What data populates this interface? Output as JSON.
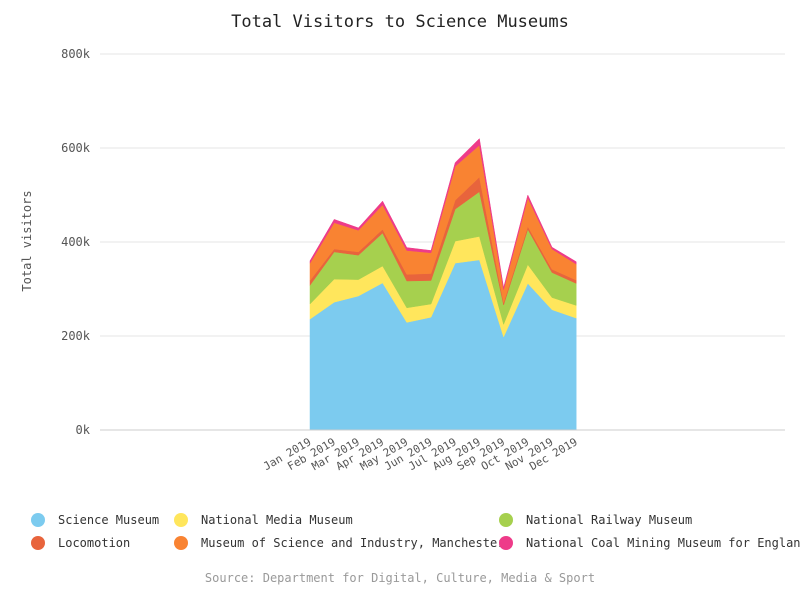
{
  "chart_data": {
    "type": "area",
    "stacked": true,
    "title": "Total Visitors to Science Museums",
    "ylabel": "Total visitors",
    "xlabel": "",
    "source": "Source: Department for Digital, Culture, Media & Sport",
    "ylim": [
      0,
      800000
    ],
    "yticks": [
      0,
      200000,
      400000,
      600000,
      800000
    ],
    "ytick_labels": [
      "0k",
      "200k",
      "400k",
      "600k",
      "800k"
    ],
    "grid": true,
    "legend_position": "bottom",
    "categories": [
      "Jan 2019",
      "Feb 2019",
      "Mar 2019",
      "Apr 2019",
      "May 2019",
      "Jun 2019",
      "Jul 2019",
      "Aug 2019",
      "Sep 2019",
      "Oct 2019",
      "Nov 2019",
      "Dec 2019"
    ],
    "series": [
      {
        "name": "Science Museum",
        "color": "#7ccbef",
        "values": [
          236000,
          272000,
          285000,
          313000,
          229000,
          240000,
          355000,
          362000,
          198000,
          312000,
          256000,
          238000
        ]
      },
      {
        "name": "National Media Museum",
        "color": "#ffe65c",
        "values": [
          32000,
          49000,
          35000,
          36000,
          31000,
          28000,
          47000,
          50000,
          27000,
          40000,
          26000,
          27000
        ]
      },
      {
        "name": "National Railway Museum",
        "color": "#a6d04e",
        "values": [
          40000,
          58000,
          52000,
          70000,
          57000,
          50000,
          68000,
          95000,
          41000,
          75000,
          53000,
          47000
        ]
      },
      {
        "name": "Locomotion",
        "color": "#e8643c",
        "values": [
          10000,
          6000,
          7000,
          8000,
          14000,
          15000,
          19000,
          31000,
          5000,
          6000,
          7000,
          7000
        ]
      },
      {
        "name": "Museum of Science and Industry, Manchester",
        "color": "#f98332",
        "values": [
          37000,
          56000,
          46000,
          52000,
          51000,
          44000,
          72000,
          68000,
          28000,
          61000,
          43000,
          34000
        ]
      },
      {
        "name": "National Coal Mining Museum for England",
        "color": "#ee3b89",
        "values": [
          5000,
          7000,
          5000,
          8000,
          6000,
          5000,
          8000,
          14000,
          4000,
          6000,
          4000,
          5000
        ]
      }
    ]
  }
}
